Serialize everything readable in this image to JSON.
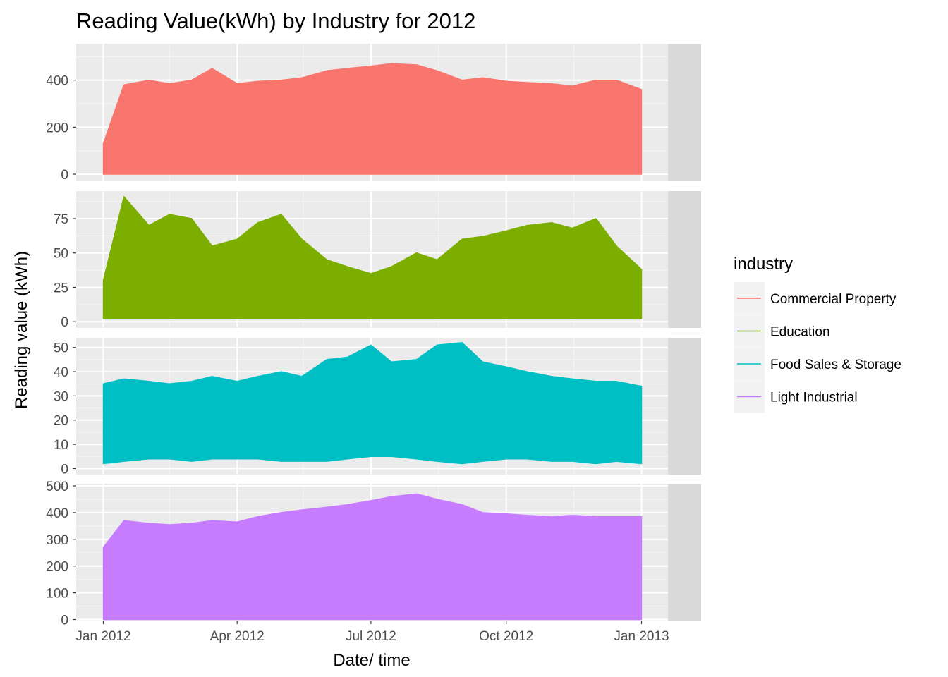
{
  "title": "Reading Value(kWh) by Industry for 2012",
  "xlabel": "Date/ time",
  "ylabel": "Reading value (kWh)",
  "legend": {
    "title": "industry",
    "items": [
      {
        "label": "Commercial Property",
        "color": "#F8766D"
      },
      {
        "label": "Education",
        "color": "#7CAE00"
      },
      {
        "label": "Food Sales & Storage",
        "color": "#00BFC4"
      },
      {
        "label": "Light Industrial",
        "color": "#C77CFF"
      }
    ]
  },
  "chart_data": {
    "type": "line",
    "facet": "industry",
    "grid": true,
    "legend_position": "right",
    "x_axis": {
      "range": [
        "2012-01-01",
        "2013-01-01"
      ],
      "ticks": [
        {
          "date": "2012-01-01",
          "label": "Jan 2012"
        },
        {
          "date": "2012-04-01",
          "label": "Apr 2012"
        },
        {
          "date": "2012-07-01",
          "label": "Jul 2012"
        },
        {
          "date": "2012-10-01",
          "label": "Oct 2012"
        },
        {
          "date": "2013-01-01",
          "label": "Jan 2013"
        }
      ]
    },
    "panels": [
      {
        "industry": "Commercial Property",
        "strip_label": "Commercial Property",
        "color": "#F8766D",
        "ylim": [
          -27,
          555
        ],
        "yticks": [
          0,
          200,
          400
        ],
        "series": {
          "x": [
            "2012-01-01",
            "2012-01-15",
            "2012-02-01",
            "2012-02-15",
            "2012-03-01",
            "2012-03-15",
            "2012-04-01",
            "2012-04-15",
            "2012-05-01",
            "2012-05-15",
            "2012-06-01",
            "2012-06-15",
            "2012-07-01",
            "2012-07-15",
            "2012-08-01",
            "2012-08-15",
            "2012-09-01",
            "2012-09-15",
            "2012-10-01",
            "2012-10-15",
            "2012-11-01",
            "2012-11-15",
            "2012-12-01",
            "2012-12-15",
            "2013-01-01"
          ],
          "min": [
            0,
            0,
            0,
            0,
            0,
            0,
            0,
            0,
            0,
            0,
            0,
            0,
            0,
            0,
            0,
            0,
            0,
            0,
            0,
            0,
            0,
            0,
            0,
            0,
            0
          ],
          "max": [
            130,
            380,
            400,
            385,
            400,
            450,
            385,
            395,
            400,
            410,
            440,
            450,
            460,
            470,
            465,
            440,
            400,
            410,
            395,
            390,
            385,
            375,
            400,
            400,
            360
          ]
        }
      },
      {
        "industry": "Education",
        "strip_label": "Education",
        "color": "#7CAE00",
        "ylim": [
          -4.5,
          95
        ],
        "yticks": [
          0,
          25,
          50,
          75
        ],
        "series": {
          "x": [
            "2012-01-01",
            "2012-01-15",
            "2012-02-01",
            "2012-02-15",
            "2012-03-01",
            "2012-03-15",
            "2012-04-01",
            "2012-04-15",
            "2012-05-01",
            "2012-05-15",
            "2012-06-01",
            "2012-06-15",
            "2012-07-01",
            "2012-07-15",
            "2012-08-01",
            "2012-08-15",
            "2012-09-01",
            "2012-09-15",
            "2012-10-01",
            "2012-10-15",
            "2012-11-01",
            "2012-11-15",
            "2012-12-01",
            "2012-12-15",
            "2013-01-01"
          ],
          "min": [
            2,
            2,
            2,
            2,
            2,
            2,
            2,
            2,
            2,
            2,
            2,
            2,
            2,
            2,
            2,
            2,
            2,
            2,
            2,
            2,
            2,
            2,
            2,
            2,
            2
          ],
          "max": [
            30,
            91,
            70,
            78,
            75,
            55,
            60,
            72,
            78,
            60,
            45,
            40,
            35,
            40,
            50,
            45,
            60,
            62,
            66,
            70,
            72,
            68,
            75,
            55,
            38
          ]
        }
      },
      {
        "industry": "Food Sales & Storage",
        "strip_label": "Food Sales & Storage",
        "color": "#00BFC4",
        "ylim": [
          -2.5,
          54
        ],
        "yticks": [
          0,
          10,
          20,
          30,
          40,
          50
        ],
        "series": {
          "x": [
            "2012-01-01",
            "2012-01-15",
            "2012-02-01",
            "2012-02-15",
            "2012-03-01",
            "2012-03-15",
            "2012-04-01",
            "2012-04-15",
            "2012-05-01",
            "2012-05-15",
            "2012-06-01",
            "2012-06-15",
            "2012-07-01",
            "2012-07-15",
            "2012-08-01",
            "2012-08-15",
            "2012-09-01",
            "2012-09-15",
            "2012-10-01",
            "2012-10-15",
            "2012-11-01",
            "2012-11-15",
            "2012-12-01",
            "2012-12-15",
            "2013-01-01"
          ],
          "min": [
            2,
            3,
            4,
            4,
            3,
            4,
            4,
            4,
            3,
            3,
            3,
            4,
            5,
            5,
            4,
            3,
            2,
            3,
            4,
            4,
            3,
            3,
            2,
            3,
            2
          ],
          "max": [
            35,
            37,
            36,
            35,
            36,
            38,
            36,
            38,
            40,
            38,
            45,
            46,
            51,
            44,
            45,
            51,
            52,
            44,
            42,
            40,
            38,
            37,
            36,
            36,
            34
          ]
        }
      },
      {
        "industry": "Light Industrial",
        "strip_label": "Light Industrial",
        "color": "#C77CFF",
        "ylim": [
          -4,
          508
        ],
        "yticks": [
          0,
          100,
          200,
          300,
          400,
          500
        ],
        "series": {
          "x": [
            "2012-01-01",
            "2012-01-15",
            "2012-02-01",
            "2012-02-15",
            "2012-03-01",
            "2012-03-15",
            "2012-04-01",
            "2012-04-15",
            "2012-05-01",
            "2012-05-15",
            "2012-06-01",
            "2012-06-15",
            "2012-07-01",
            "2012-07-15",
            "2012-08-01",
            "2012-08-15",
            "2012-09-01",
            "2012-09-15",
            "2012-10-01",
            "2012-10-15",
            "2012-11-01",
            "2012-11-15",
            "2012-12-01",
            "2012-12-15",
            "2013-01-01"
          ],
          "min": [
            0,
            0,
            0,
            0,
            0,
            0,
            0,
            0,
            0,
            0,
            0,
            0,
            0,
            0,
            0,
            0,
            0,
            0,
            0,
            0,
            0,
            0,
            0,
            0,
            0
          ],
          "max": [
            270,
            370,
            360,
            355,
            360,
            370,
            365,
            385,
            400,
            410,
            420,
            430,
            445,
            460,
            470,
            450,
            430,
            400,
            395,
            390,
            385,
            390,
            385,
            385,
            385
          ]
        }
      }
    ]
  }
}
